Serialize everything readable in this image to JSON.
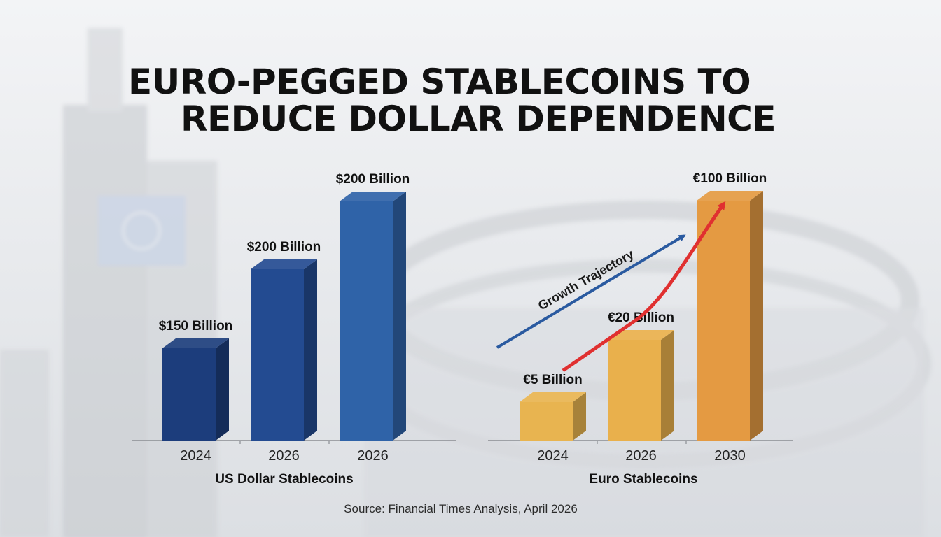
{
  "title_lines": [
    "EURO-PEGGED STABLECOINS TO",
    "REDUCE DOLLAR DEPENDENCE"
  ],
  "source": "Source: Financial Times Analysis, April 2026",
  "colors": {
    "usd_bars": [
      "#1c3d7c",
      "#234b91",
      "#2f63a8"
    ],
    "eur_bars": [
      "#e8b450",
      "#e9b04c",
      "#e49a42"
    ],
    "arrow_blue": "#2a5aa0",
    "arrow_red": "#e03030"
  },
  "chart_data": [
    {
      "type": "bar",
      "xlabel": "US Dollar Stablecoins",
      "categories": [
        "2024",
        "2026",
        "2026"
      ],
      "values": [
        150,
        200,
        200
      ],
      "data_labels": [
        "$150 Billion",
        "$200 Billion",
        "$200 Billion"
      ],
      "grid": false
    },
    {
      "type": "bar",
      "xlabel": "Euro Stablecoins",
      "categories": [
        "2024",
        "2026",
        "2030"
      ],
      "values": [
        5,
        20,
        100
      ],
      "data_labels": [
        "€5 Billion",
        "€20 Billion",
        "€100 Billion"
      ],
      "annotation": "Growth Trajectory",
      "grid": false
    }
  ]
}
